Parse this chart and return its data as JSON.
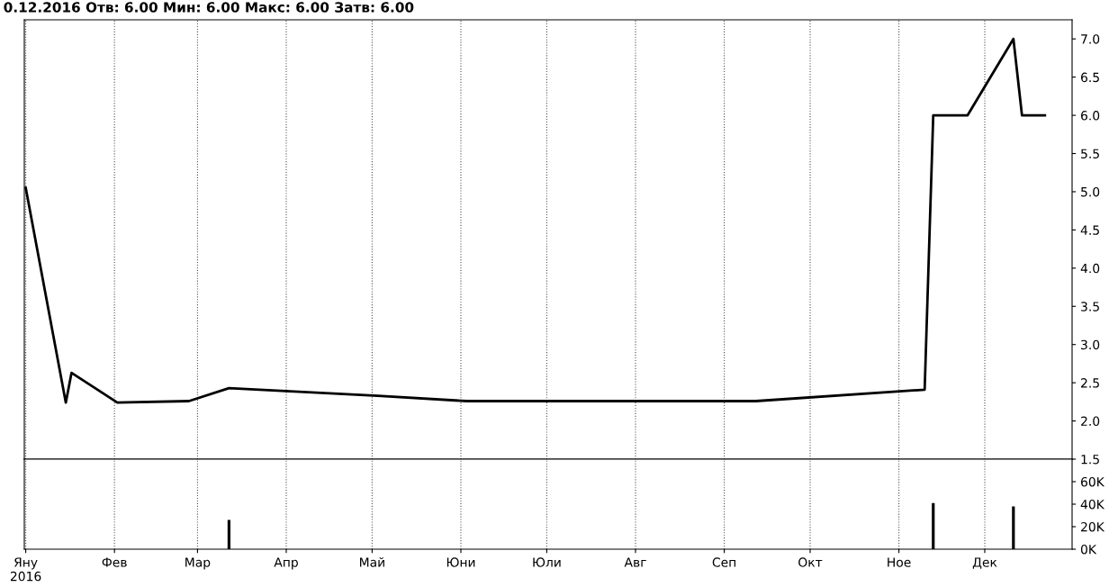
{
  "chart_data": [
    {
      "type": "line",
      "title": "0.12.2016 Отв: 6.00 Мин: 6.00 Макс: 6.00 Затв: 6.00",
      "categories": [
        null,
        null,
        null,
        null,
        null,
        null,
        null,
        null,
        null,
        null,
        null,
        null,
        null,
        null,
        null,
        null,
        null,
        null,
        null,
        null,
        null,
        null,
        null,
        null,
        null,
        null,
        null,
        null,
        null,
        null,
        null,
        null,
        null,
        null,
        null,
        null,
        null,
        null,
        null,
        null,
        null,
        null,
        null,
        null,
        null,
        null,
        null,
        null,
        null,
        null,
        null,
        null,
        null,
        null,
        null,
        null,
        null,
        null,
        null,
        null,
        null,
        null,
        null,
        null,
        null,
        null,
        null,
        null,
        null,
        null,
        null,
        null,
        null,
        null,
        null,
        null,
        null,
        null,
        null,
        null,
        null,
        null,
        null,
        null,
        null,
        null,
        null,
        null,
        null,
        null,
        null,
        null,
        null,
        null,
        null,
        null,
        null,
        null,
        null,
        null,
        null,
        null,
        null,
        null,
        null,
        null,
        null,
        null,
        null,
        null,
        null,
        null,
        null,
        null,
        null,
        null,
        null,
        null,
        null,
        null,
        null,
        null,
        null,
        null,
        null,
        null,
        null,
        null,
        null,
        null,
        null,
        null,
        null,
        null,
        null,
        null,
        null,
        null,
        null,
        null,
        null,
        null,
        null,
        null,
        null,
        null,
        null,
        null,
        null,
        null,
        null,
        null,
        null,
        null,
        null,
        null,
        null,
        null,
        null,
        null,
        null,
        null,
        null,
        null,
        null,
        null,
        null,
        null,
        null,
        null,
        null,
        null,
        null,
        null,
        null,
        null,
        null,
        null,
        null,
        null,
        null,
        null,
        null,
        null,
        null,
        null,
        null,
        null,
        null,
        null,
        null,
        null,
        null,
        null,
        null,
        null,
        null,
        null,
        null,
        null,
        null,
        null,
        null,
        null,
        null,
        null,
        null,
        null,
        null,
        null,
        null,
        null,
        null,
        null,
        null,
        null,
        null,
        null,
        null,
        null,
        null,
        null,
        null,
        null,
        null,
        null,
        null,
        null,
        null,
        null,
        null,
        null,
        null,
        null,
        null,
        null,
        null,
        null,
        null,
        null,
        null,
        null,
        null,
        null,
        null,
        null,
        null,
        null,
        null,
        null,
        null,
        null,
        null,
        null,
        null,
        null,
        null,
        null,
        null,
        null,
        null,
        null,
        null,
        null,
        null,
        null,
        null,
        null,
        null,
        null,
        null,
        null,
        null,
        null,
        null,
        null,
        null,
        null,
        null,
        null,
        null,
        null,
        null,
        null,
        null,
        null,
        null,
        null,
        null,
        null,
        null,
        null,
        null,
        null,
        null,
        null,
        null,
        null,
        null,
        null,
        null,
        null,
        null,
        null,
        null,
        null,
        null,
        null,
        null,
        null,
        null,
        null,
        null,
        null,
        null,
        null,
        null,
        null,
        null,
        null,
        null,
        null,
        null,
        null,
        null,
        null,
        null,
        null,
        null,
        null,
        null,
        null,
        null,
        null,
        null,
        null,
        null,
        null,
        null,
        null,
        null,
        null,
        null,
        null,
        null,
        null,
        null,
        null,
        null,
        null,
        null,
        null,
        null,
        null,
        null,
        null,
        null,
        null,
        null,
        null,
        null,
        null,
        null,
        null,
        null,
        null
      ],
      "series": [
        {
          "color": "#000000",
          "values": [
            5.05,
            null,
            null,
            null,
            null,
            null,
            null,
            null,
            null,
            null,
            null,
            null,
            null,
            null,
            2.24,
            null,
            2.63,
            null,
            null,
            null,
            null,
            null,
            null,
            null,
            null,
            null,
            null,
            null,
            null,
            null,
            null,
            null,
            2.24,
            null,
            null,
            null,
            null,
            null,
            null,
            null,
            null,
            null,
            null,
            null,
            null,
            null,
            null,
            null,
            null,
            null,
            null,
            null,
            null,
            null,
            null,
            null,
            null,
            2.26,
            null,
            null,
            null,
            null,
            null,
            null,
            null,
            null,
            null,
            null,
            null,
            null,
            null,
            2.43,
            null,
            null,
            null,
            null,
            null,
            null,
            null,
            null,
            null,
            null,
            null,
            null,
            null,
            null,
            null,
            null,
            null,
            null,
            null,
            null,
            null,
            null,
            null,
            null,
            null,
            null,
            null,
            null,
            null,
            null,
            null,
            null,
            null,
            null,
            null,
            null,
            null,
            null,
            null,
            null,
            null,
            null,
            null,
            null,
            null,
            null,
            null,
            null,
            null,
            null,
            null,
            2.33,
            null,
            null,
            null,
            null,
            null,
            null,
            null,
            null,
            null,
            null,
            null,
            null,
            null,
            null,
            null,
            null,
            null,
            null,
            null,
            null,
            null,
            null,
            null,
            null,
            null,
            null,
            null,
            null,
            null,
            null,
            2.26,
            null,
            null,
            null,
            null,
            null,
            null,
            null,
            null,
            null,
            null,
            null,
            null,
            null,
            null,
            null,
            null,
            null,
            null,
            null,
            null,
            null,
            null,
            null,
            null,
            null,
            null,
            null,
            null,
            null,
            null,
            null,
            null,
            null,
            null,
            null,
            null,
            null,
            null,
            null,
            null,
            null,
            null,
            null,
            null,
            null,
            null,
            null,
            null,
            null,
            null,
            null,
            null,
            null,
            null,
            null,
            null,
            null,
            null,
            null,
            null,
            null,
            null,
            null,
            null,
            null,
            null,
            null,
            null,
            null,
            null,
            null,
            null,
            null,
            null,
            null,
            null,
            null,
            null,
            null,
            null,
            null,
            null,
            null,
            null,
            null,
            null,
            null,
            null,
            null,
            null,
            null,
            null,
            null,
            null,
            null,
            null,
            null,
            null,
            null,
            null,
            2.26,
            null,
            null,
            null,
            null,
            null,
            null,
            null,
            null,
            null,
            null,
            null,
            null,
            null,
            null,
            null,
            null,
            null,
            null,
            null,
            null,
            null,
            null,
            null,
            null,
            null,
            null,
            null,
            null,
            null,
            null,
            null,
            null,
            null,
            null,
            null,
            null,
            null,
            null,
            null,
            null,
            null,
            null,
            null,
            null,
            null,
            null,
            null,
            null,
            null,
            null,
            null,
            null,
            null,
            null,
            null,
            null,
            null,
            null,
            2.41,
            null,
            null,
            6.0,
            null,
            null,
            null,
            null,
            null,
            null,
            null,
            null,
            null,
            null,
            null,
            6.0,
            null,
            null,
            null,
            null,
            null,
            null,
            null,
            null,
            null,
            null,
            null,
            null,
            null,
            null,
            null,
            7.0,
            null,
            null,
            6.0,
            null,
            null,
            null,
            null,
            null,
            null,
            null,
            6.0,
            null,
            null,
            null,
            null,
            null,
            null,
            null,
            null,
            null
          ]
        }
      ],
      "ylim": [
        1.5,
        7.25
      ],
      "yticks": [
        {
          "value": 1.5,
          "label": "1.5"
        },
        {
          "value": 2,
          "label": "2.0"
        },
        {
          "value": 2.5,
          "label": "2.5"
        },
        {
          "value": 3,
          "label": "3.0"
        },
        {
          "value": 3.5,
          "label": "3.5"
        },
        {
          "value": 4,
          "label": "4.0"
        },
        {
          "value": 4.5,
          "label": "4.5"
        },
        {
          "value": 5,
          "label": "5.0"
        },
        {
          "value": 5.5,
          "label": "5.5"
        },
        {
          "value": 6,
          "label": "6.0"
        },
        {
          "value": 6.5,
          "label": "6.5"
        },
        {
          "value": 7,
          "label": "7.0"
        }
      ],
      "grid": "x",
      "tick_labels": "y"
    },
    {
      "type": "bar",
      "categories": [
        "Яну\n2016",
        null,
        null,
        null,
        null,
        null,
        null,
        null,
        null,
        null,
        null,
        null,
        null,
        null,
        null,
        null,
        null,
        null,
        null,
        null,
        null,
        null,
        null,
        null,
        null,
        null,
        null,
        null,
        null,
        null,
        null,
        "Фев",
        null,
        null,
        null,
        null,
        null,
        null,
        null,
        null,
        null,
        null,
        null,
        null,
        null,
        null,
        null,
        null,
        null,
        null,
        null,
        null,
        null,
        null,
        null,
        null,
        null,
        null,
        null,
        null,
        "Мар",
        null,
        null,
        null,
        null,
        null,
        null,
        null,
        null,
        null,
        null,
        null,
        null,
        null,
        null,
        null,
        null,
        null,
        null,
        null,
        null,
        null,
        null,
        null,
        null,
        null,
        null,
        null,
        null,
        null,
        null,
        "Апр",
        null,
        null,
        null,
        null,
        null,
        null,
        null,
        null,
        null,
        null,
        null,
        null,
        null,
        null,
        null,
        null,
        null,
        null,
        null,
        null,
        null,
        null,
        null,
        null,
        null,
        null,
        null,
        null,
        null,
        "Май",
        null,
        null,
        null,
        null,
        null,
        null,
        null,
        null,
        null,
        null,
        null,
        null,
        null,
        null,
        null,
        null,
        null,
        null,
        null,
        null,
        null,
        null,
        null,
        null,
        null,
        null,
        null,
        null,
        null,
        null,
        "Юни",
        null,
        null,
        null,
        null,
        null,
        null,
        null,
        null,
        null,
        null,
        null,
        null,
        null,
        null,
        null,
        null,
        null,
        null,
        null,
        null,
        null,
        null,
        null,
        null,
        null,
        null,
        null,
        null,
        null,
        "Юли",
        null,
        null,
        null,
        null,
        null,
        null,
        null,
        null,
        null,
        null,
        null,
        null,
        null,
        null,
        null,
        null,
        null,
        null,
        null,
        null,
        null,
        null,
        null,
        null,
        null,
        null,
        null,
        null,
        null,
        null,
        "Авг",
        null,
        null,
        null,
        null,
        null,
        null,
        null,
        null,
        null,
        null,
        null,
        null,
        null,
        null,
        null,
        null,
        null,
        null,
        null,
        null,
        null,
        null,
        null,
        null,
        null,
        null,
        null,
        null,
        null,
        null,
        "Сеп",
        null,
        null,
        null,
        null,
        null,
        null,
        null,
        null,
        null,
        null,
        null,
        null,
        null,
        null,
        null,
        null,
        null,
        null,
        null,
        null,
        null,
        null,
        null,
        null,
        null,
        null,
        null,
        null,
        null,
        "Окт",
        null,
        null,
        null,
        null,
        null,
        null,
        null,
        null,
        null,
        null,
        null,
        null,
        null,
        null,
        null,
        null,
        null,
        null,
        null,
        null,
        null,
        null,
        null,
        null,
        null,
        null,
        null,
        null,
        null,
        null,
        "Ное",
        null,
        null,
        null,
        null,
        null,
        null,
        null,
        null,
        null,
        null,
        null,
        null,
        null,
        null,
        null,
        null,
        null,
        null,
        null,
        null,
        null,
        null,
        null,
        null,
        null,
        null,
        null,
        null,
        null,
        "Дек",
        null,
        null,
        null,
        null,
        null,
        null,
        null,
        null,
        null,
        null,
        null,
        null,
        null,
        null,
        null,
        null,
        null,
        null,
        null,
        null,
        null,
        null,
        null,
        null,
        null,
        null,
        null,
        null,
        null,
        null
      ],
      "series": [
        {
          "color": "#000000",
          "values": [
            null,
            null,
            null,
            null,
            null,
            null,
            null,
            null,
            null,
            null,
            null,
            null,
            null,
            null,
            null,
            null,
            null,
            null,
            null,
            null,
            null,
            null,
            null,
            null,
            null,
            null,
            null,
            null,
            null,
            null,
            null,
            null,
            null,
            null,
            null,
            null,
            null,
            null,
            null,
            null,
            null,
            null,
            null,
            null,
            null,
            null,
            null,
            null,
            null,
            null,
            null,
            null,
            null,
            null,
            null,
            null,
            null,
            null,
            null,
            null,
            null,
            null,
            null,
            null,
            null,
            null,
            null,
            null,
            null,
            null,
            null,
            26000,
            null,
            null,
            null,
            null,
            null,
            null,
            null,
            null,
            null,
            null,
            null,
            null,
            null,
            null,
            null,
            null,
            null,
            null,
            null,
            null,
            null,
            null,
            null,
            null,
            null,
            null,
            null,
            null,
            null,
            null,
            null,
            null,
            null,
            null,
            null,
            null,
            null,
            null,
            null,
            null,
            null,
            null,
            null,
            null,
            null,
            null,
            null,
            null,
            null,
            null,
            null,
            null,
            null,
            null,
            null,
            null,
            null,
            null,
            null,
            null,
            null,
            null,
            null,
            null,
            null,
            null,
            null,
            null,
            null,
            null,
            null,
            null,
            null,
            null,
            null,
            null,
            null,
            null,
            null,
            null,
            null,
            null,
            null,
            null,
            null,
            null,
            null,
            null,
            null,
            null,
            null,
            null,
            null,
            null,
            null,
            null,
            null,
            null,
            null,
            null,
            null,
            null,
            null,
            null,
            null,
            null,
            null,
            null,
            null,
            null,
            null,
            null,
            null,
            null,
            null,
            null,
            null,
            null,
            null,
            null,
            null,
            null,
            null,
            null,
            null,
            null,
            null,
            null,
            null,
            null,
            null,
            null,
            null,
            null,
            null,
            null,
            null,
            null,
            null,
            null,
            null,
            null,
            null,
            null,
            null,
            null,
            null,
            null,
            null,
            null,
            null,
            null,
            null,
            null,
            null,
            null,
            null,
            null,
            null,
            null,
            null,
            null,
            null,
            null,
            null,
            null,
            null,
            null,
            null,
            null,
            null,
            null,
            null,
            null,
            null,
            null,
            null,
            null,
            null,
            null,
            null,
            null,
            null,
            null,
            null,
            null,
            null,
            null,
            null,
            null,
            null,
            null,
            null,
            null,
            null,
            null,
            null,
            null,
            null,
            null,
            null,
            null,
            null,
            null,
            null,
            null,
            null,
            null,
            null,
            null,
            null,
            null,
            null,
            null,
            null,
            null,
            null,
            null,
            null,
            null,
            null,
            null,
            null,
            null,
            null,
            null,
            null,
            null,
            null,
            null,
            null,
            null,
            null,
            null,
            null,
            null,
            null,
            null,
            null,
            null,
            null,
            null,
            null,
            null,
            null,
            41000,
            null,
            null,
            null,
            null,
            null,
            null,
            null,
            null,
            null,
            null,
            null,
            null,
            null,
            null,
            null,
            null,
            null,
            null,
            null,
            null,
            null,
            null,
            null,
            null,
            null,
            null,
            null,
            38000,
            null,
            null,
            null,
            null,
            null,
            null,
            null,
            null,
            null,
            null,
            null,
            null,
            null,
            null,
            null,
            null,
            null,
            null,
            null,
            null
          ]
        }
      ],
      "ylim": [
        0,
        80000
      ],
      "yticks": [
        {
          "value": 0,
          "label": "0K"
        },
        {
          "value": 20000,
          "label": "20K"
        },
        {
          "value": 40000,
          "label": "40K"
        },
        {
          "value": 60000,
          "label": "60K"
        }
      ],
      "grid": "x"
    }
  ]
}
